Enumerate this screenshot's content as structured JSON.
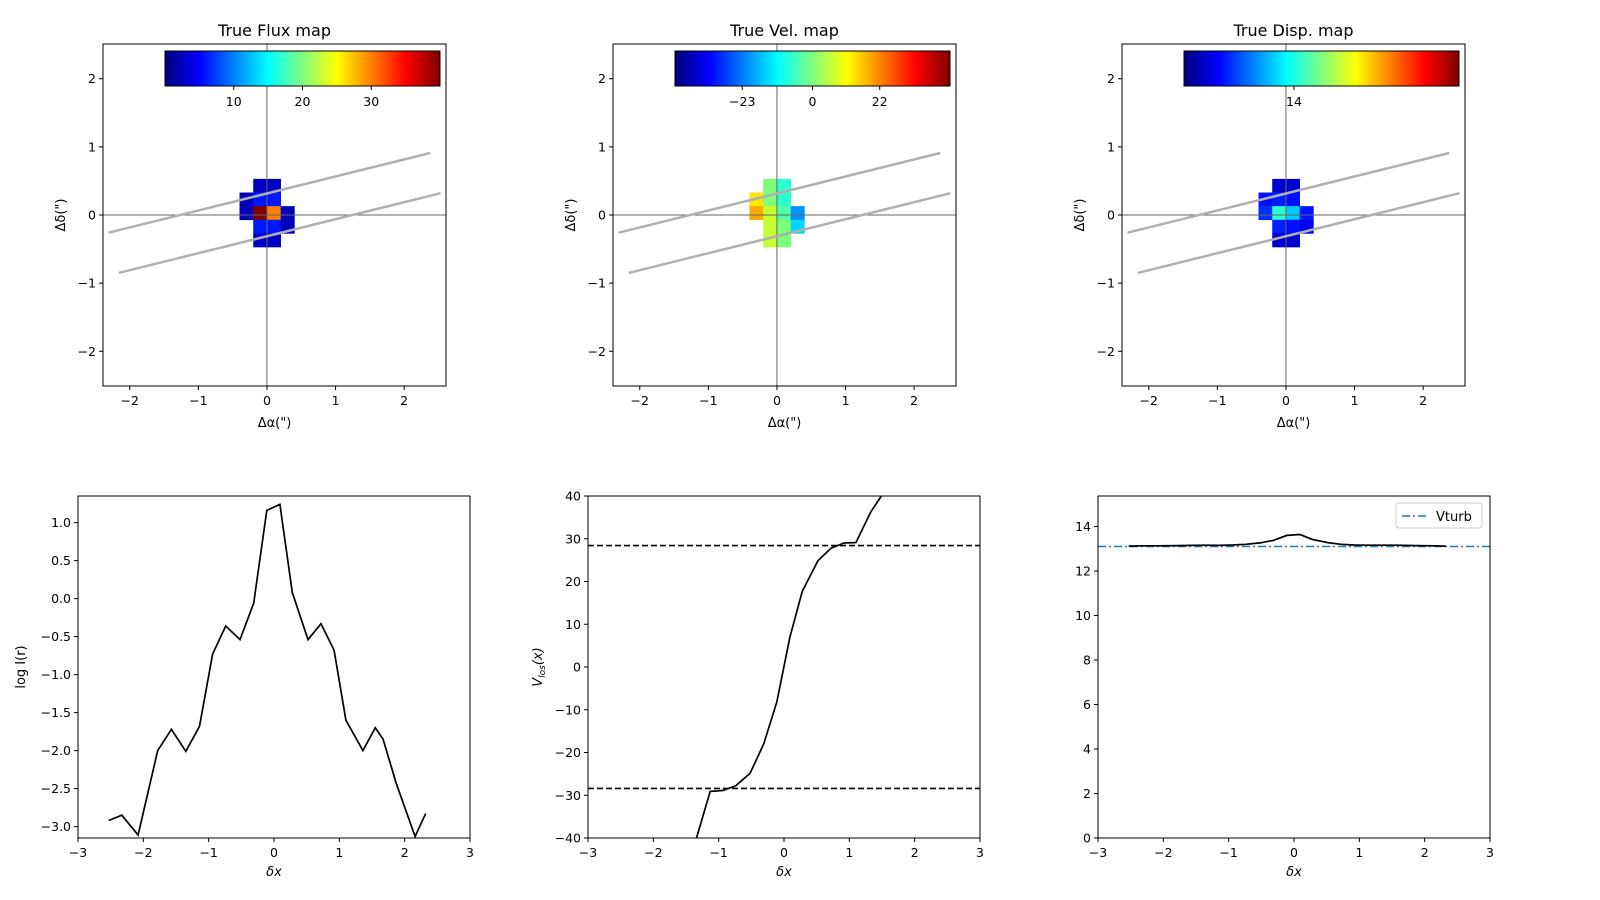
{
  "chart_data": [
    {
      "type": "heatmap",
      "title": "True Flux map",
      "xlabel": "Δα(\")",
      "ylabel": "Δδ(\")",
      "xlim": [
        -2.39,
        2.61
      ],
      "ylim": [
        -2.51,
        2.51
      ],
      "xticks": [
        -2,
        -1,
        0,
        1,
        2
      ],
      "yticks": [
        -2,
        -1,
        0,
        1,
        2
      ],
      "pixel_size": 0.2,
      "col_left_edges": [
        -0.4,
        -0.2,
        0.0,
        0.2
      ],
      "row_top_edges": [
        0.53,
        0.33,
        0.13,
        -0.07,
        -0.27
      ],
      "pixels": [
        [
          null,
          "#0000c4",
          "#0000c4",
          null
        ],
        [
          "#0000b8",
          "#0018ff",
          "#0018ff",
          null
        ],
        [
          "#0000b8",
          "#800000",
          "#ff8000",
          "#0000b8"
        ],
        [
          null,
          "#0018ff",
          "#0018ff",
          "#0000b8"
        ],
        [
          null,
          "#0000c4",
          "#0000c4",
          null
        ]
      ],
      "slits": [
        [
          [
            -2.31,
            -0.26
          ],
          [
            2.38,
            0.91
          ]
        ],
        [
          [
            -2.16,
            -0.85
          ],
          [
            2.53,
            0.32
          ]
        ]
      ],
      "colorbar": {
        "range": [
          0,
          40
        ],
        "ticks": [
          10,
          20,
          30
        ],
        "tick_labels": [
          "10",
          "20",
          "30"
        ]
      }
    },
    {
      "type": "heatmap",
      "title": "True Vel. map",
      "xlabel": "Δα(\")",
      "ylabel": "Δδ(\")",
      "xlim": [
        -2.39,
        2.61
      ],
      "ylim": [
        -2.51,
        2.51
      ],
      "xticks": [
        -2,
        -1,
        0,
        1,
        2
      ],
      "yticks": [
        -2,
        -1,
        0,
        1,
        2
      ],
      "pixel_size": 0.2,
      "col_left_edges": [
        -0.4,
        -0.2,
        0.0,
        0.2
      ],
      "row_top_edges": [
        0.53,
        0.33,
        0.13,
        -0.07,
        -0.27
      ],
      "pixels": [
        [
          null,
          "#7dff7a",
          "#2affcd",
          null
        ],
        [
          "#ffe600",
          "#7dff7a",
          "#2affcd",
          null
        ],
        [
          "#ffa800",
          "#c4ff33",
          "#4dffaa",
          "#0094ff"
        ],
        [
          null,
          "#c4ff33",
          "#7dff7a",
          "#00d4ff"
        ],
        [
          null,
          "#c4ff33",
          "#7dff7a",
          null
        ]
      ],
      "slits": [
        [
          [
            -2.31,
            -0.26
          ],
          [
            2.38,
            0.91
          ]
        ],
        [
          [
            -2.16,
            -0.85
          ],
          [
            2.53,
            0.32
          ]
        ]
      ],
      "colorbar": {
        "range": [
          -45,
          45
        ],
        "ticks": [
          -23,
          0,
          22
        ],
        "tick_labels": [
          "−23",
          "0",
          "22"
        ]
      }
    },
    {
      "type": "heatmap",
      "title": "True Disp. map",
      "xlabel": "Δα(\")",
      "ylabel": "Δδ(\")",
      "xlim": [
        -2.39,
        2.61
      ],
      "ylim": [
        -2.51,
        2.51
      ],
      "xticks": [
        -2,
        -1,
        0,
        1,
        2
      ],
      "yticks": [
        -2,
        -1,
        0,
        1,
        2
      ],
      "pixel_size": 0.2,
      "col_left_edges": [
        -0.4,
        -0.2,
        0.0,
        0.2
      ],
      "row_top_edges": [
        0.53,
        0.33,
        0.13,
        -0.07,
        -0.27
      ],
      "pixels": [
        [
          null,
          "#0000d0",
          "#0000d0",
          null
        ],
        [
          "#0010ff",
          "#0020ff",
          "#0010ff",
          null
        ],
        [
          "#0030ff",
          "#2affd0",
          "#00ccff",
          "#0010ff"
        ],
        [
          null,
          "#0020ff",
          "#0010ff",
          "#0000f0"
        ],
        [
          null,
          "#0000d0",
          "#0000d0",
          null
        ]
      ],
      "slits": [
        [
          [
            -2.31,
            -0.26
          ],
          [
            2.38,
            0.91
          ]
        ],
        [
          [
            -2.16,
            -0.85
          ],
          [
            2.53,
            0.32
          ]
        ]
      ],
      "colorbar": {
        "range": [
          13.1,
          15.35
        ],
        "ticks": [
          14
        ],
        "tick_labels": [
          "14"
        ]
      }
    },
    {
      "type": "line",
      "title": "",
      "xlabel": "δx",
      "ylabel": "log I(r)",
      "xlim": [
        -3,
        3
      ],
      "ylim": [
        -3.15,
        1.35
      ],
      "xticks": [
        -3,
        -2,
        -1,
        0,
        1,
        2,
        3
      ],
      "yticks": [
        1.0,
        0.5,
        0.0,
        -0.5,
        -1.0,
        -1.5,
        -2.0,
        -2.5,
        -3.0
      ],
      "ytick_labels": [
        "1.0",
        "0.5",
        "0.0",
        "−0.5",
        "−1.0",
        "−1.5",
        "−2.0",
        "−2.5",
        "−3.0"
      ],
      "series": [
        {
          "name": "log I",
          "color": "#000000",
          "x": [
            -2.53,
            -2.33,
            -2.08,
            -1.78,
            -1.57,
            -1.35,
            -1.14,
            -0.94,
            -0.74,
            -0.52,
            -0.31,
            -0.11,
            0.09,
            0.28,
            0.52,
            0.72,
            0.92,
            1.1,
            1.36,
            1.55,
            1.67,
            1.87,
            2.16,
            2.32
          ],
          "y": [
            -2.92,
            -2.85,
            -3.11,
            -2.0,
            -1.72,
            -2.01,
            -1.68,
            -0.73,
            -0.36,
            -0.54,
            -0.06,
            1.16,
            1.24,
            0.08,
            -0.54,
            -0.33,
            -0.68,
            -1.6,
            -2.0,
            -1.7,
            -1.85,
            -2.43,
            -3.13,
            -2.83
          ]
        }
      ]
    },
    {
      "type": "line",
      "title": "",
      "xlabel": "δx",
      "ylabel": "V",
      "ylabel_sub": "los",
      "ylabel_tail": "(x)",
      "xlim": [
        -3,
        3
      ],
      "ylim": [
        -40,
        40
      ],
      "xticks": [
        -3,
        -2,
        -1,
        0,
        1,
        2,
        3
      ],
      "yticks": [
        40,
        30,
        20,
        10,
        0,
        -10,
        -20,
        -30,
        -40
      ],
      "ytick_labels": [
        "40",
        "30",
        "20",
        "10",
        "0",
        "−10",
        "−20",
        "−30",
        "−40"
      ],
      "hlines": [
        {
          "y": 28.4,
          "style": "dashed",
          "color": "#000000"
        },
        {
          "y": -28.4,
          "style": "dashed",
          "color": "#000000"
        }
      ],
      "series": [
        {
          "name": "Vlos",
          "color": "#000000",
          "x": [
            -1.34,
            -1.13,
            -0.94,
            -0.74,
            -0.52,
            -0.31,
            -0.11,
            0.09,
            0.28,
            0.52,
            0.72,
            0.92,
            1.1,
            1.33,
            1.49
          ],
          "y": [
            -40,
            -29.1,
            -28.9,
            -27.8,
            -24.9,
            -18.0,
            -8.2,
            7.0,
            17.7,
            24.9,
            27.8,
            29.0,
            29.1,
            36.3,
            40
          ]
        }
      ]
    },
    {
      "type": "line",
      "title": "",
      "xlabel": "δx",
      "ylabel": "",
      "xlim": [
        -3,
        3
      ],
      "ylim": [
        0,
        15.37
      ],
      "xticks": [
        -3,
        -2,
        -1,
        0,
        1,
        2,
        3
      ],
      "yticks": [
        0,
        2,
        4,
        6,
        8,
        10,
        12,
        14
      ],
      "ytick_labels": [
        "0",
        "2",
        "4",
        "6",
        "8",
        "10",
        "12",
        "14"
      ],
      "hlines": [
        {
          "y": 13.1,
          "style": "dashdot",
          "color": "#1f77b4",
          "label": "Vturb"
        }
      ],
      "legend": {
        "placement": "upper-right",
        "entries": [
          "Vturb"
        ]
      },
      "series": [
        {
          "name": "dispersion",
          "color": "#000000",
          "x": [
            -2.53,
            -2.33,
            -2.08,
            -1.78,
            -1.57,
            -1.35,
            -1.14,
            -0.94,
            -0.74,
            -0.52,
            -0.31,
            -0.11,
            0.09,
            0.28,
            0.52,
            0.72,
            0.92,
            1.1,
            1.36,
            1.55,
            1.67,
            1.87,
            2.16,
            2.32
          ],
          "y": [
            13.12,
            13.13,
            13.13,
            13.14,
            13.15,
            13.16,
            13.15,
            13.17,
            13.2,
            13.26,
            13.38,
            13.6,
            13.64,
            13.42,
            13.27,
            13.2,
            13.17,
            13.16,
            13.16,
            13.16,
            13.15,
            13.14,
            13.13,
            13.12
          ]
        }
      ]
    }
  ]
}
